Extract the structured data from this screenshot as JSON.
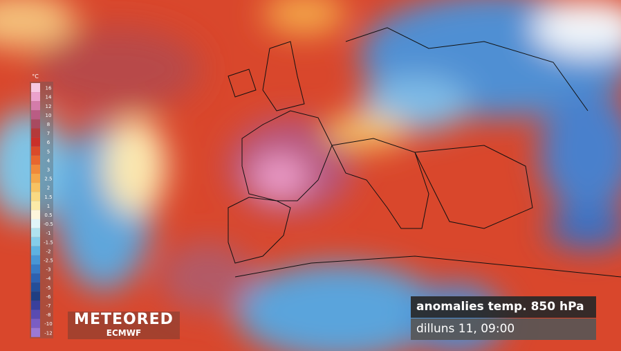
{
  "map": {
    "title": "anomalies temp. 850 hPa",
    "date": "dilluns 11, 09:00",
    "brand": "METEORED",
    "partner": "ECMWF",
    "legend": {
      "unit": "°C",
      "labels": [
        16,
        14,
        12,
        10,
        8,
        7,
        6,
        5,
        4,
        3,
        2.5,
        2,
        1.5,
        1,
        0.5,
        -0.5,
        -1,
        -1.5,
        -2,
        -2.5,
        -3,
        -4,
        -5,
        -6,
        -7,
        -8,
        -10,
        -12
      ],
      "colors": [
        "#f6c8e2",
        "#eba2cc",
        "#d47caa",
        "#b95c84",
        "#a84a60",
        "#b43a3a",
        "#c9302a",
        "#da4a2a",
        "#e8662e",
        "#f0893a",
        "#f4a74a",
        "#f7c262",
        "#f9d982",
        "#fbeaa8",
        "#fdf6dc",
        "#e0f4f8",
        "#b0e2ef",
        "#85cdea",
        "#5eb2e1",
        "#4896d5",
        "#377ac5",
        "#2c61b1",
        "#234e99",
        "#1f3e82",
        "#3a409c",
        "#5a4bb1",
        "#7a5dc4",
        "#9b79d5"
      ]
    }
  }
}
